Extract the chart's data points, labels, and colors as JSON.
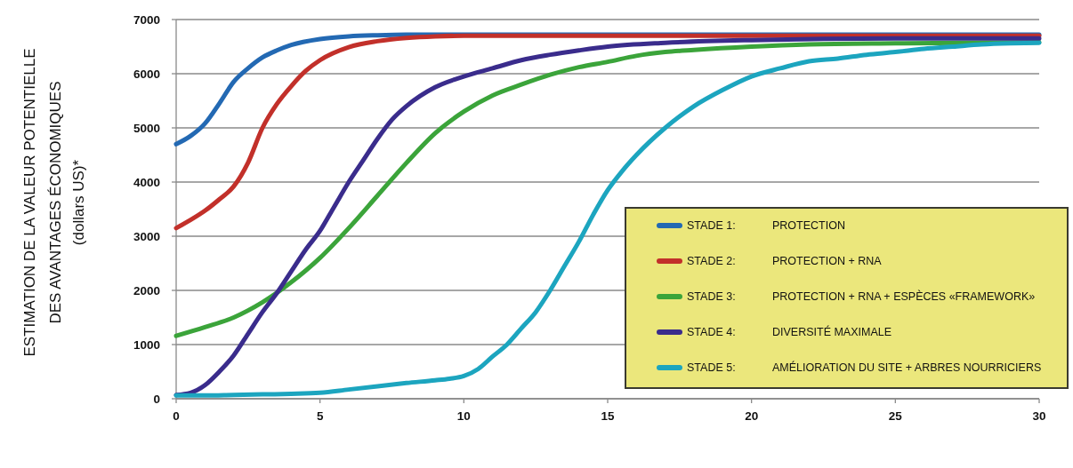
{
  "chart_data": {
    "type": "line",
    "ylabel": "ESTIMATION DE LA VALEUR POTENTIELLE\nDES AVANTAGES ÉCONOMIQUES\n(dollars US)*",
    "xlim": [
      0,
      30
    ],
    "xticks": [
      0,
      5,
      10,
      15,
      20,
      25,
      30
    ],
    "ylim": [
      0,
      7000
    ],
    "yticks": [
      0,
      1000,
      2000,
      3000,
      4000,
      5000,
      6000,
      7000
    ],
    "grid": "y",
    "legend": "bottom right",
    "series": [
      {
        "name": "STADE 1: PROTECTION",
        "color": "#2369b3",
        "x": [
          0,
          0.5,
          1,
          1.5,
          2,
          2.5,
          3,
          3.5,
          4,
          5,
          6,
          7,
          8,
          10,
          15,
          20,
          25,
          30
        ],
        "values": [
          4700,
          4850,
          5080,
          5450,
          5850,
          6100,
          6300,
          6430,
          6530,
          6640,
          6690,
          6710,
          6720,
          6720,
          6720,
          6720,
          6720,
          6720
        ]
      },
      {
        "name": "STADE 2: PROTECTION + RNA",
        "color": "#c2302a",
        "x": [
          0,
          0.5,
          1,
          1.5,
          2,
          2.5,
          3,
          3.5,
          4,
          4.5,
          5,
          6,
          7,
          8,
          9,
          10,
          15,
          20,
          25,
          30
        ],
        "values": [
          3150,
          3300,
          3470,
          3680,
          3920,
          4360,
          5000,
          5440,
          5770,
          6050,
          6250,
          6490,
          6600,
          6660,
          6690,
          6700,
          6700,
          6700,
          6700,
          6700
        ]
      },
      {
        "name": "STADE 3: PROTECTION + RNA + ESPÈCES «FRAMEWORK»",
        "color": "#3ba43a",
        "x": [
          0,
          1,
          2,
          3,
          4,
          5,
          6,
          7,
          8,
          9,
          10,
          11,
          12,
          13,
          14,
          15,
          16,
          17,
          18,
          20,
          22,
          25,
          30
        ],
        "values": [
          1160,
          1320,
          1500,
          1780,
          2150,
          2600,
          3150,
          3750,
          4350,
          4900,
          5300,
          5600,
          5800,
          5980,
          6120,
          6220,
          6330,
          6400,
          6440,
          6500,
          6540,
          6560,
          6580
        ]
      },
      {
        "name": "STADE 4: DIVERSITÉ MAXIMALE",
        "color": "#3a2c8c",
        "x": [
          0,
          0.5,
          1,
          1.5,
          2,
          2.5,
          3,
          3.5,
          4,
          4.5,
          5,
          5.5,
          6,
          6.5,
          7,
          7.5,
          8,
          9,
          10,
          11,
          12,
          13,
          14,
          15,
          17,
          20,
          25,
          30
        ],
        "values": [
          70,
          110,
          250,
          500,
          800,
          1200,
          1600,
          1950,
          2350,
          2750,
          3100,
          3550,
          4000,
          4400,
          4800,
          5150,
          5400,
          5750,
          5950,
          6100,
          6250,
          6350,
          6430,
          6500,
          6570,
          6620,
          6650,
          6650
        ]
      },
      {
        "name": "STADE 5: AMÉLIORATION DU SITE + ARBRES NOURRICIERS",
        "color": "#1ca5bf",
        "x": [
          0,
          1,
          2,
          3,
          4,
          5,
          6,
          7,
          8,
          9,
          9.5,
          10,
          10.5,
          11,
          11.5,
          12,
          12.5,
          13,
          13.5,
          14,
          14.5,
          15,
          15.5,
          16,
          17,
          18,
          19,
          20,
          21,
          22,
          23,
          24,
          25,
          26,
          27,
          28,
          29,
          30
        ],
        "values": [
          60,
          60,
          70,
          80,
          90,
          110,
          170,
          230,
          290,
          340,
          370,
          420,
          550,
          780,
          1000,
          1300,
          1600,
          2000,
          2450,
          2900,
          3400,
          3850,
          4200,
          4500,
          5000,
          5400,
          5700,
          5950,
          6100,
          6230,
          6280,
          6350,
          6400,
          6460,
          6500,
          6540,
          6560,
          6570
        ]
      }
    ]
  }
}
